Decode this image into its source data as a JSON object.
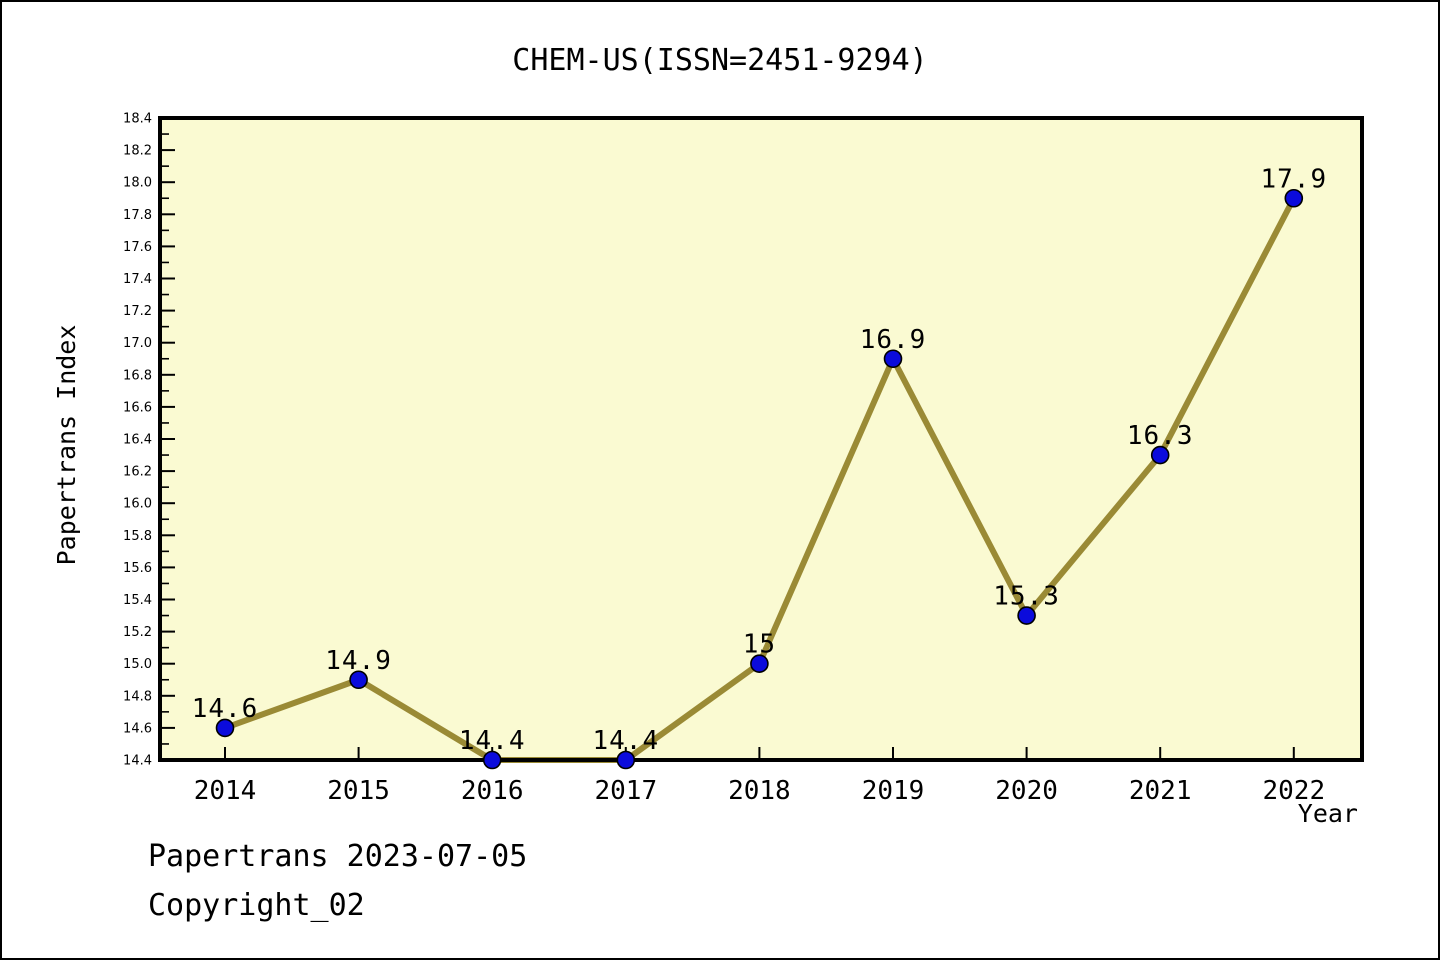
{
  "title": "CHEM-US(ISSN=2451-9294)",
  "footer": {
    "line1": "Papertrans 2023-07-05",
    "line2": "Copyright_02"
  },
  "chart_data": {
    "type": "line",
    "title": "CHEM-US(ISSN=2451-9294)",
    "xlabel": "Year",
    "ylabel": "Papertrans Index",
    "categories": [
      2014,
      2015,
      2016,
      2017,
      2018,
      2019,
      2020,
      2021,
      2022
    ],
    "values": [
      14.6,
      14.9,
      14.4,
      14.4,
      15,
      16.9,
      15.3,
      16.3,
      17.9
    ],
    "point_labels": [
      "14.6",
      "14.9",
      "14.4",
      "14.4",
      "15",
      "16.9",
      "15.3",
      "16.3",
      "17.9"
    ],
    "ylim": [
      14.4,
      18.4
    ],
    "y_major_step": 0.2,
    "y_minor_step": 0.1,
    "grid": false,
    "legend": null,
    "colors": {
      "line": "#9A8A35",
      "marker_fill": "#0B0BDC",
      "marker_edge": "#000000",
      "plot_bg": "#FAFAD2",
      "outer_bg": "#FFFFFF",
      "frame": "#000000",
      "text": "#000000"
    }
  }
}
